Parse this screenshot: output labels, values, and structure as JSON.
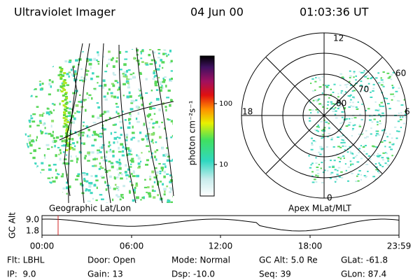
{
  "header": {
    "title": "Ultraviolet Imager",
    "date": "04 Jun 00",
    "time": "01:03:36 UT"
  },
  "left_panel": {
    "label": "Geographic Lat/Lon"
  },
  "colorbar": {
    "label": "photon cm⁻²s⁻¹",
    "ticks": [
      "100",
      "10"
    ]
  },
  "polar_panel": {
    "label": "Apex MLat/MLT",
    "mlt": {
      "top": "12",
      "left": "18",
      "right": "6",
      "bottom": "0"
    },
    "mlat": [
      "60",
      "70",
      "80"
    ]
  },
  "alt_plot": {
    "ylabel": "GC Alt",
    "yticks": [
      "9.0",
      "1.8"
    ],
    "xticks": [
      "00:00",
      "06:00",
      "12:00",
      "18:00",
      "23:59"
    ]
  },
  "footer": {
    "rows": [
      [
        "Flt: LBHL",
        "Door: Open",
        "Mode: Normal",
        "GC Alt: 5.0 Re",
        "GLat: -61.8"
      ],
      [
        "IP:  9.0",
        "Gain: 13",
        "Dsp: -10.0",
        "Seq: 39",
        "GLon: 87.4"
      ]
    ]
  }
}
